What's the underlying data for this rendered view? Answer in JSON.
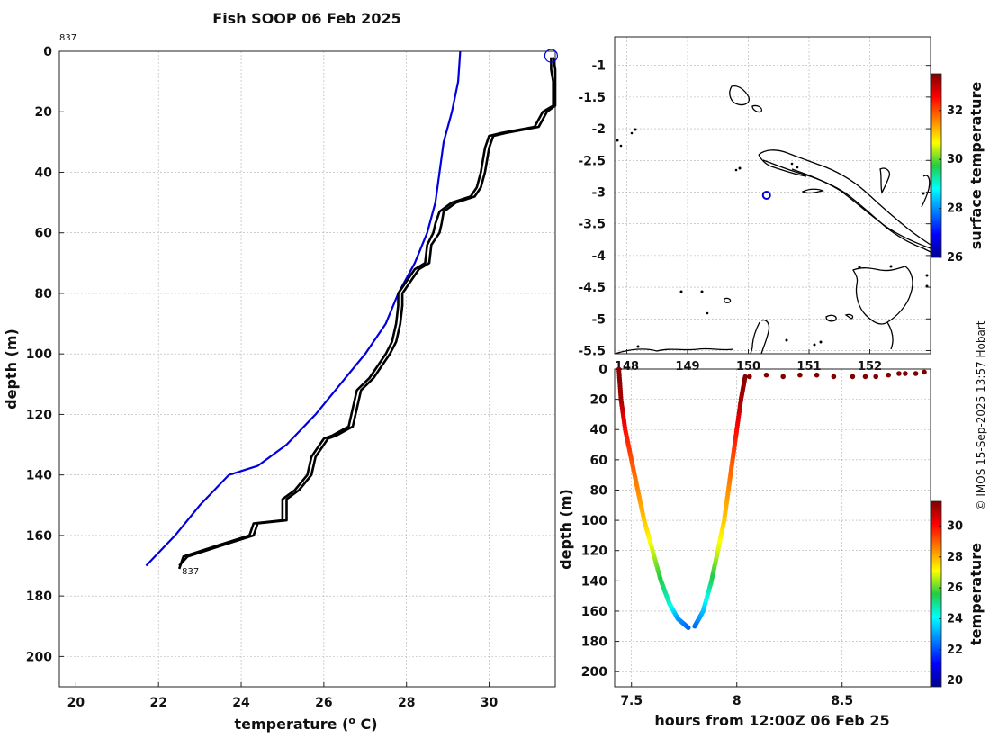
{
  "title": "Fish SOOP 06 Feb 2025",
  "credit": "© IMOS 15-Sep-2025 13:57 Hobart",
  "colors": {
    "climatology": "#0000dd",
    "profile": "#000000",
    "marker": "#0000dd"
  },
  "chart_data": [
    {
      "type": "line",
      "id": "profile",
      "xlabel": "temperature (",
      "xlabel_sup": "o",
      "xlabel_tail": " C)",
      "ylabel": "depth (m)",
      "xlim": [
        19.6,
        31.6
      ],
      "ylim": [
        0,
        210
      ],
      "y_inverted": true,
      "xticks": [
        20,
        22,
        24,
        26,
        28,
        30
      ],
      "yticks": [
        0,
        20,
        40,
        60,
        80,
        100,
        120,
        140,
        160,
        180,
        200
      ],
      "top_annotation": "837",
      "bottom_annotation": "837",
      "series": [
        {
          "key": "climatology",
          "points": [
            [
              29.3,
              0
            ],
            [
              29.25,
              10
            ],
            [
              29.1,
              20
            ],
            [
              28.9,
              30
            ],
            [
              28.8,
              40
            ],
            [
              28.7,
              50
            ],
            [
              28.5,
              60
            ],
            [
              28.2,
              70
            ],
            [
              27.8,
              80
            ],
            [
              27.5,
              90
            ],
            [
              27.0,
              100
            ],
            [
              26.4,
              110
            ],
            [
              25.8,
              120
            ],
            [
              25.1,
              130
            ],
            [
              24.4,
              137
            ],
            [
              23.7,
              140
            ],
            [
              23.0,
              150
            ],
            [
              22.4,
              160
            ],
            [
              21.7,
              170
            ]
          ]
        },
        {
          "key": "cast_a",
          "points": [
            [
              31.5,
              2
            ],
            [
              31.5,
              6
            ],
            [
              31.55,
              10
            ],
            [
              31.55,
              18
            ],
            [
              31.3,
              20
            ],
            [
              31.1,
              25
            ],
            [
              30.3,
              27
            ],
            [
              30.0,
              28
            ],
            [
              29.9,
              32
            ],
            [
              29.8,
              40
            ],
            [
              29.7,
              45
            ],
            [
              29.55,
              48
            ],
            [
              29.1,
              50
            ],
            [
              28.8,
              53
            ],
            [
              28.7,
              57
            ],
            [
              28.65,
              60
            ],
            [
              28.5,
              64
            ],
            [
              28.45,
              70
            ],
            [
              28.2,
              72
            ],
            [
              28.0,
              76
            ],
            [
              27.8,
              80
            ],
            [
              27.8,
              84
            ],
            [
              27.75,
              90
            ],
            [
              27.65,
              96
            ],
            [
              27.5,
              100
            ],
            [
              27.3,
              104
            ],
            [
              27.1,
              108
            ],
            [
              26.8,
              112
            ],
            [
              26.7,
              118
            ],
            [
              26.6,
              124
            ],
            [
              26.2,
              127
            ],
            [
              26.0,
              128
            ],
            [
              25.9,
              130
            ],
            [
              25.7,
              134
            ],
            [
              25.6,
              140
            ],
            [
              25.3,
              145
            ],
            [
              25.0,
              148
            ],
            [
              25.0,
              155
            ],
            [
              24.3,
              156
            ],
            [
              24.2,
              160
            ],
            [
              23.5,
              163
            ],
            [
              22.6,
              167
            ],
            [
              22.5,
              171
            ]
          ]
        },
        {
          "key": "cast_b",
          "points": [
            [
              31.55,
              2
            ],
            [
              31.6,
              6
            ],
            [
              31.6,
              10
            ],
            [
              31.6,
              18
            ],
            [
              31.4,
              20
            ],
            [
              31.2,
              25
            ],
            [
              30.4,
              27
            ],
            [
              30.1,
              28
            ],
            [
              30.0,
              32
            ],
            [
              29.9,
              40
            ],
            [
              29.8,
              45
            ],
            [
              29.65,
              48
            ],
            [
              29.2,
              50
            ],
            [
              28.9,
              53
            ],
            [
              28.85,
              57
            ],
            [
              28.8,
              60
            ],
            [
              28.6,
              64
            ],
            [
              28.55,
              70
            ],
            [
              28.3,
              72
            ],
            [
              28.1,
              76
            ],
            [
              27.9,
              80
            ],
            [
              27.9,
              84
            ],
            [
              27.85,
              90
            ],
            [
              27.75,
              96
            ],
            [
              27.6,
              100
            ],
            [
              27.4,
              104
            ],
            [
              27.2,
              108
            ],
            [
              26.9,
              112
            ],
            [
              26.8,
              118
            ],
            [
              26.7,
              124
            ],
            [
              26.3,
              127
            ],
            [
              26.1,
              128
            ],
            [
              26.0,
              130
            ],
            [
              25.8,
              134
            ],
            [
              25.7,
              140
            ],
            [
              25.4,
              145
            ],
            [
              25.1,
              148
            ],
            [
              25.1,
              155
            ],
            [
              24.4,
              156
            ],
            [
              24.3,
              160
            ],
            [
              23.6,
              163
            ],
            [
              22.7,
              167
            ],
            [
              22.5,
              170
            ]
          ]
        }
      ],
      "marker": {
        "x": 31.5,
        "y": 1.5
      }
    },
    {
      "type": "map",
      "id": "map",
      "xlim": [
        147.8,
        153.0
      ],
      "ylim": [
        -5.55,
        -0.55
      ],
      "xticks": [
        148,
        149,
        150,
        151,
        152
      ],
      "yticks": [
        -1,
        -1.5,
        -2,
        -2.5,
        -3,
        -3.5,
        -4,
        -4.5,
        -5,
        -5.5
      ],
      "ytick_labels": [
        "-1",
        "-1.5",
        "-2",
        "-2.5",
        "-3",
        "-3.5",
        "-4",
        "-4.5",
        "-5",
        "-5.5"
      ],
      "colorbar_label": "surface temperature",
      "colorbar_range": [
        26,
        33.5
      ],
      "colorbar_ticks": [
        26,
        28,
        30,
        32
      ],
      "ship_position": {
        "lon": 150.3,
        "lat": -3.05
      }
    },
    {
      "type": "scatter",
      "id": "timeseries",
      "xlabel": "hours from 12:00Z 06 Feb 25",
      "ylabel": "depth (m)",
      "xlim": [
        7.42,
        8.92
      ],
      "ylim": [
        0,
        210
      ],
      "y_inverted": true,
      "xticks": [
        7.5,
        8,
        8.5
      ],
      "xtick_labels": [
        "7.5",
        "8",
        "8.5"
      ],
      "yticks": [
        0,
        20,
        40,
        60,
        80,
        100,
        120,
        140,
        160,
        180,
        200
      ],
      "colorbar_label": "temperature",
      "colorbar_range": [
        19.6,
        31.6
      ],
      "colorbar_ticks": [
        20,
        22,
        24,
        26,
        28,
        30
      ],
      "descent": [
        [
          7.44,
          0,
          31.5
        ],
        [
          7.45,
          20,
          31.2
        ],
        [
          7.47,
          40,
          30.0
        ],
        [
          7.5,
          60,
          29.2
        ],
        [
          7.53,
          80,
          28.5
        ],
        [
          7.56,
          100,
          27.8
        ],
        [
          7.6,
          120,
          26.8
        ],
        [
          7.64,
          140,
          25.5
        ],
        [
          7.68,
          155,
          24.5
        ],
        [
          7.72,
          165,
          23.0
        ],
        [
          7.77,
          171,
          22.3
        ]
      ],
      "ascent": [
        [
          7.8,
          170,
          22.3
        ],
        [
          7.84,
          160,
          23.3
        ],
        [
          7.88,
          140,
          25.3
        ],
        [
          7.91,
          120,
          26.8
        ],
        [
          7.94,
          100,
          27.7
        ],
        [
          7.96,
          80,
          28.4
        ],
        [
          7.98,
          60,
          29.1
        ],
        [
          8.0,
          40,
          30.0
        ],
        [
          8.02,
          20,
          31.1
        ],
        [
          8.04,
          5,
          31.5
        ]
      ],
      "surface": [
        [
          8.06,
          5,
          31.6
        ],
        [
          8.14,
          4,
          31.6
        ],
        [
          8.22,
          5,
          31.6
        ],
        [
          8.3,
          4,
          31.6
        ],
        [
          8.38,
          4,
          31.6
        ],
        [
          8.46,
          5,
          31.6
        ],
        [
          8.55,
          5,
          31.6
        ],
        [
          8.61,
          5,
          31.6
        ],
        [
          8.66,
          5,
          31.6
        ],
        [
          8.72,
          4,
          31.6
        ],
        [
          8.77,
          3,
          31.6
        ],
        [
          8.8,
          3,
          31.6
        ],
        [
          8.85,
          3,
          31.6
        ],
        [
          8.89,
          2,
          31.6
        ]
      ]
    }
  ]
}
